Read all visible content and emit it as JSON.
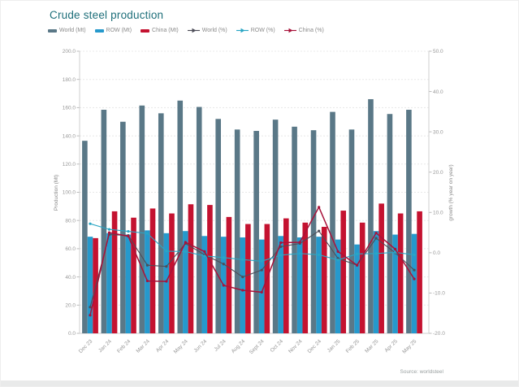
{
  "page": {
    "title": "Crude steel production",
    "source": "Source: worldsteel"
  },
  "colors": {
    "title_teal": "#1d6e79",
    "world_bar": "#5a7887",
    "row_bar": "#2699cc",
    "china_bar": "#c41230",
    "world_line": "#4d4d58",
    "row_line": "#2aa6c4",
    "china_line": "#a8123a",
    "grid": "#e8e8e8",
    "axis_text": "#999999"
  },
  "legend": {
    "items": [
      {
        "label": "World (Mt)",
        "color": "#5a7887",
        "type": "bar"
      },
      {
        "label": "ROW (Mt)",
        "color": "#2699cc",
        "type": "bar"
      },
      {
        "label": "China (Mt)",
        "color": "#c41230",
        "type": "bar"
      },
      {
        "label": "World (%)",
        "color": "#4d4d58",
        "type": "line"
      },
      {
        "label": "ROW (%)",
        "color": "#2aa6c4",
        "type": "line"
      },
      {
        "label": "China (%)",
        "color": "#a8123a",
        "type": "line"
      }
    ]
  },
  "chart_data": {
    "type": "bar",
    "title": "Crude steel production",
    "categories": [
      "Dec 23",
      "Jan 24",
      "Feb 24",
      "Mar 24",
      "Apr 24",
      "May 24",
      "Jun 24",
      "Jul 24",
      "Aug 24",
      "Sept 24",
      "Oct 24",
      "Nov 24",
      "Dec 24",
      "Jan 25",
      "Feb 25",
      "Mar 25",
      "Apr 25",
      "May 25"
    ],
    "series": [
      {
        "name": "World (Mt)",
        "type": "bar",
        "axis": "left",
        "color": "#5a7887",
        "values": [
          136.5,
          158.5,
          150.0,
          161.5,
          156.0,
          165.0,
          160.5,
          152.0,
          144.5,
          143.5,
          151.5,
          146.5,
          144.0,
          157.0,
          144.5,
          166.0,
          155.5,
          158.5
        ]
      },
      {
        "name": "ROW (Mt)",
        "type": "bar",
        "axis": "left",
        "color": "#2699cc",
        "values": [
          68.5,
          71.0,
          70.0,
          73.0,
          71.0,
          72.5,
          69.0,
          68.5,
          68.0,
          66.5,
          69.0,
          68.0,
          68.5,
          66.5,
          63.0,
          72.5,
          70.0,
          70.5
        ]
      },
      {
        "name": "China (Mt)",
        "type": "bar",
        "axis": "left",
        "color": "#c41230",
        "values": [
          67.5,
          86.5,
          82.0,
          88.5,
          85.0,
          91.5,
          91.0,
          82.5,
          77.5,
          77.5,
          81.5,
          78.5,
          75.5,
          87.0,
          78.5,
          92.0,
          85.0,
          86.5
        ]
      },
      {
        "name": "World (%)",
        "type": "line",
        "axis": "right",
        "color": "#4d4d58",
        "values": [
          -13.5,
          4.5,
          4.3,
          -3.1,
          -3.4,
          2.3,
          -0.5,
          -2.8,
          -6.0,
          -4.3,
          1.5,
          2.3,
          5.4,
          -1.4,
          -3.1,
          3.6,
          0.0,
          -4.3
        ]
      },
      {
        "name": "ROW (%)",
        "type": "line",
        "axis": "right",
        "color": "#2aa6c4",
        "values": [
          7.2,
          5.8,
          5.3,
          4.8,
          0.4,
          0.3,
          -0.8,
          -1.2,
          -1.7,
          -2.1,
          -0.6,
          -0.2,
          -0.5,
          -1.8,
          -0.3,
          -0.2,
          0.1,
          -0.5
        ]
      },
      {
        "name": "China (%)",
        "type": "line",
        "axis": "right",
        "color": "#a8123a",
        "values": [
          -15.5,
          5.0,
          4.1,
          -7.0,
          -7.1,
          2.6,
          0.3,
          -8.1,
          -9.3,
          -9.8,
          2.5,
          2.6,
          11.3,
          0.3,
          -3.1,
          4.9,
          0.9,
          -6.5
        ]
      }
    ],
    "left_axis": {
      "label": "Production (Mt)",
      "min": 0,
      "max": 200,
      "step": 20,
      "ticks": [
        "0.0",
        "20.0",
        "40.0",
        "60.0",
        "80.0",
        "100.0",
        "120.0",
        "140.0",
        "160.0",
        "180.0",
        "200.0"
      ]
    },
    "right_axis": {
      "label": "growth (% year on year)",
      "min": -20,
      "max": 50,
      "step": 10,
      "ticks": [
        "-20.0",
        "-10.0",
        "0.0",
        "10.0",
        "20.0",
        "30.0",
        "40.0",
        "50.0"
      ]
    },
    "grid": true,
    "legend_position": "top"
  }
}
